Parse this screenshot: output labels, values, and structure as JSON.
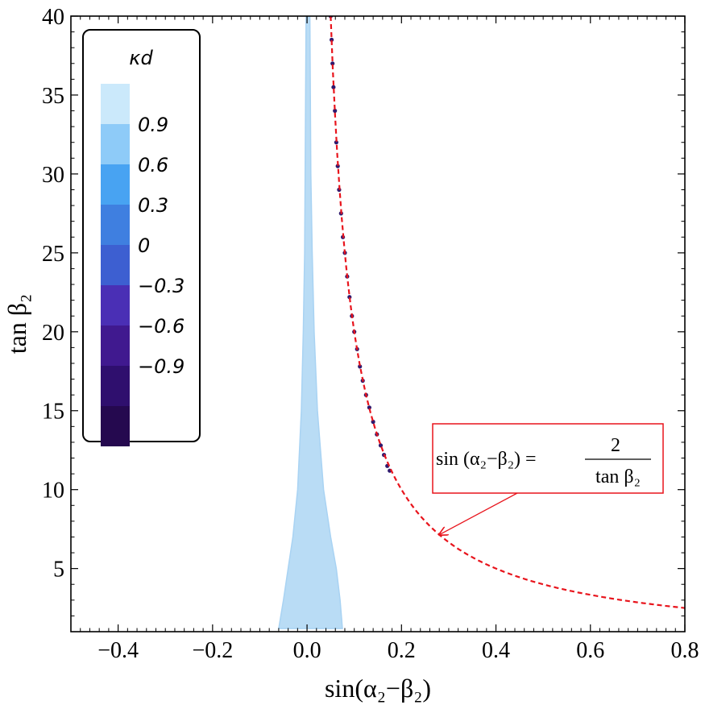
{
  "chart_data": {
    "type": "scatter",
    "xlabel": "sin(α₂−β₂)",
    "ylabel": "tan β₂",
    "xlim": [
      -0.5,
      0.8
    ],
    "ylim": [
      1,
      40
    ],
    "x_ticks": [
      -0.4,
      -0.2,
      0.0,
      0.2,
      0.4,
      0.6,
      0.8
    ],
    "x_tick_labels": [
      "−0.4",
      "−0.2",
      "0.0",
      "0.2",
      "0.4",
      "0.6",
      "0.8"
    ],
    "y_ticks": [
      5,
      10,
      15,
      20,
      25,
      30,
      35,
      40
    ],
    "y_tick_labels": [
      "5",
      "10",
      "15",
      "20",
      "25",
      "30",
      "35",
      "40"
    ],
    "grid": false,
    "colorbar": {
      "title": "κd",
      "placement": "top-left",
      "levels": [
        {
          "label": "0.9",
          "color": "#8ecbf8"
        },
        {
          "label": "0.6",
          "color": "#48a3f2"
        },
        {
          "label": "0.3",
          "color": "#3f7fe0"
        },
        {
          "label": "0",
          "color": "#3d5fd1"
        },
        {
          "label": "−0.3",
          "color": "#4a2fb5"
        },
        {
          "label": "−0.6",
          "color": "#40198f"
        },
        {
          "label": "−0.9",
          "color": "#2f0f6e"
        }
      ],
      "top_color": "#cbe9fb",
      "bottom_color": "#25094f"
    },
    "series": [
      {
        "color": "#b9dcf5",
        "region_boundary": [
          [
            -0.06,
            1.2
          ],
          [
            -0.05,
            3.0
          ],
          [
            -0.04,
            5.0
          ],
          [
            -0.03,
            7.0
          ],
          [
            -0.02,
            10.0
          ],
          [
            -0.012,
            15.0
          ],
          [
            -0.008,
            20.0
          ],
          [
            -0.005,
            25.0
          ],
          [
            -0.004,
            30.0
          ],
          [
            -0.003,
            35.0
          ],
          [
            -0.002,
            40.0
          ],
          [
            0.006,
            40.0
          ],
          [
            0.007,
            35.0
          ],
          [
            0.008,
            30.0
          ],
          [
            0.011,
            25.0
          ],
          [
            0.015,
            20.0
          ],
          [
            0.022,
            15.0
          ],
          [
            0.035,
            10.0
          ],
          [
            0.05,
            7.0
          ],
          [
            0.062,
            5.0
          ],
          [
            0.07,
            3.0
          ],
          [
            0.075,
            1.2
          ]
        ]
      },
      {
        "color": "#2f1a6e",
        "points": [
          [
            0.05,
            40.0
          ],
          [
            0.052,
            38.5
          ],
          [
            0.054,
            37.0
          ],
          [
            0.056,
            35.5
          ],
          [
            0.059,
            34.0
          ],
          [
            0.062,
            32.0
          ],
          [
            0.065,
            30.5
          ],
          [
            0.068,
            29.0
          ],
          [
            0.072,
            27.5
          ],
          [
            0.076,
            26.0
          ],
          [
            0.08,
            25.0
          ],
          [
            0.085,
            23.5
          ],
          [
            0.09,
            22.2
          ],
          [
            0.095,
            21.0
          ],
          [
            0.1,
            20.0
          ],
          [
            0.106,
            18.9
          ],
          [
            0.112,
            17.8
          ],
          [
            0.118,
            16.9
          ],
          [
            0.125,
            16.0
          ],
          [
            0.132,
            15.2
          ],
          [
            0.14,
            14.3
          ],
          [
            0.148,
            13.5
          ],
          [
            0.156,
            12.8
          ],
          [
            0.163,
            12.2
          ],
          [
            0.17,
            11.5
          ],
          [
            0.175,
            11.2
          ]
        ]
      },
      {
        "style": "dashed",
        "color": "#e8141c",
        "formula": "y = 2 / x",
        "x_range": [
          0.05,
          0.8
        ]
      }
    ],
    "annotation": {
      "lhs": "sin (α₂−β₂) =",
      "numerator": "2",
      "denominator": "tan β₂",
      "arrow_to": [
        0.28,
        7.14
      ]
    }
  }
}
